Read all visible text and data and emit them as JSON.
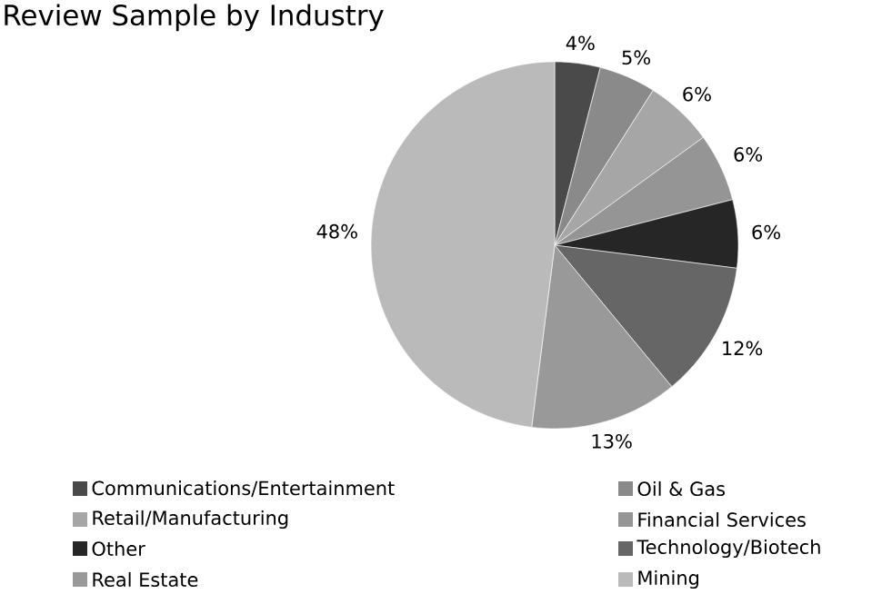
{
  "chart_data": {
    "type": "pie",
    "title": "Review Sample by Industry",
    "categories": [
      "Communications/Entertainment",
      "Oil & Gas",
      "Retail/Manufacturing",
      "Financial Services",
      "Other",
      "Technology/Biotech",
      "Real Estate",
      "Mining"
    ],
    "values": [
      4,
      5,
      6,
      6,
      6,
      12,
      13,
      48
    ],
    "value_labels": [
      "4%",
      "5%",
      "6%",
      "6%",
      "6%",
      "12%",
      "13%",
      "48%"
    ],
    "colors": [
      "#4a4a4a",
      "#8a8a8a",
      "#a6a6a6",
      "#959595",
      "#262626",
      "#666666",
      "#999999",
      "#bababa"
    ],
    "legend": "bottom"
  }
}
